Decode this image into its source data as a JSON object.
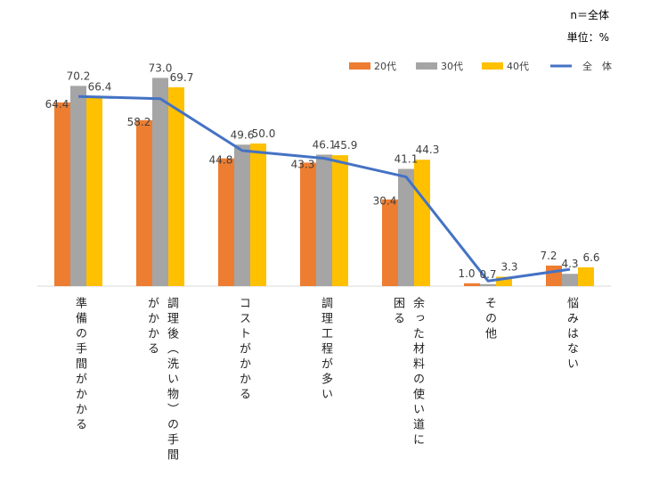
{
  "notes": {
    "sample": "n＝全体",
    "unit": "単位：%"
  },
  "colors": {
    "s20": "#ED7D31",
    "s30": "#A5A5A5",
    "s40": "#FFC000",
    "all": "#4472C4"
  },
  "chart_data": {
    "type": "bar",
    "categories": [
      [
        "準備の手間がかかる"
      ],
      [
        "調理後（洗い物）の手間",
        "がかかる"
      ],
      [
        "コストがかかる"
      ],
      [
        "調理工程が多い"
      ],
      [
        "余った材料の使い道に",
        "困る"
      ],
      [
        "その他"
      ],
      [
        "悩みはない"
      ]
    ],
    "series": [
      {
        "name": "20代",
        "values": [
          64.4,
          58.2,
          44.8,
          43.3,
          30.4,
          1.0,
          7.2
        ]
      },
      {
        "name": "30代",
        "values": [
          70.2,
          73.0,
          49.6,
          46.1,
          41.1,
          0.7,
          4.3
        ]
      },
      {
        "name": "40代",
        "values": [
          66.4,
          69.7,
          50.0,
          45.9,
          44.3,
          3.3,
          6.6
        ]
      }
    ],
    "line": {
      "name": "全　体",
      "values": [
        66.5,
        65.7,
        47.5,
        44.8,
        38.3,
        1.8,
        5.9
      ]
    },
    "ylim": [
      0,
      80
    ],
    "grid": false,
    "legend_position": "top-right"
  }
}
